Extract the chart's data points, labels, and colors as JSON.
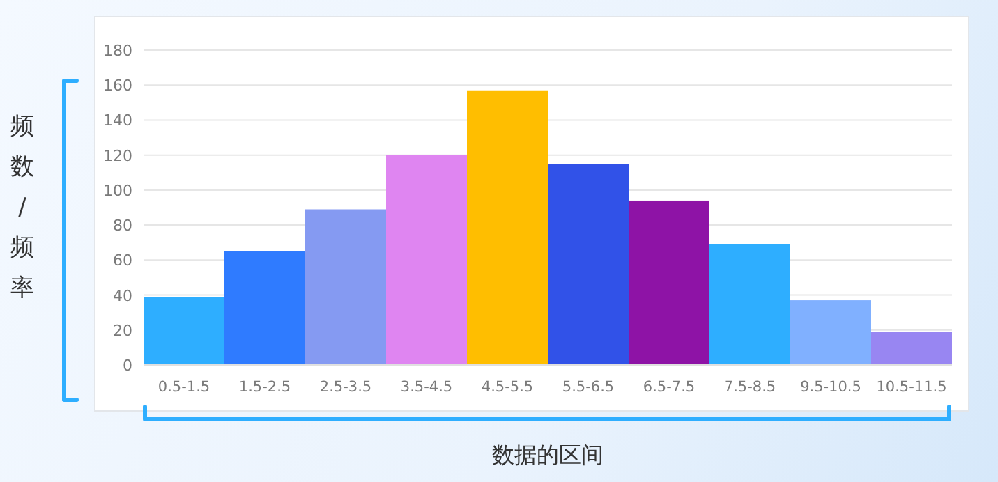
{
  "chart_data": {
    "type": "bar",
    "xlabel": "数据的区间",
    "ylabel": "频数/频率",
    "categories": [
      "0.5-1.5",
      "1.5-2.5",
      "2.5-3.5",
      "3.5-4.5",
      "4.5-5.5",
      "5.5-6.5",
      "6.5-7.5",
      "7.5-8.5",
      "9.5-10.5",
      "10.5-11.5"
    ],
    "values": [
      39,
      65,
      89,
      120,
      157,
      115,
      94,
      69,
      37,
      19
    ],
    "colors": [
      "#2eaeff",
      "#2f7bff",
      "#859af2",
      "#df85f1",
      "#ffbe00",
      "#3152e8",
      "#8e13a6",
      "#2eaeff",
      "#80b0ff",
      "#9886f2"
    ],
    "ylim": [
      0,
      180
    ],
    "yticks": [
      0,
      20,
      40,
      60,
      80,
      100,
      120,
      140,
      160,
      180
    ],
    "grid": "y"
  }
}
